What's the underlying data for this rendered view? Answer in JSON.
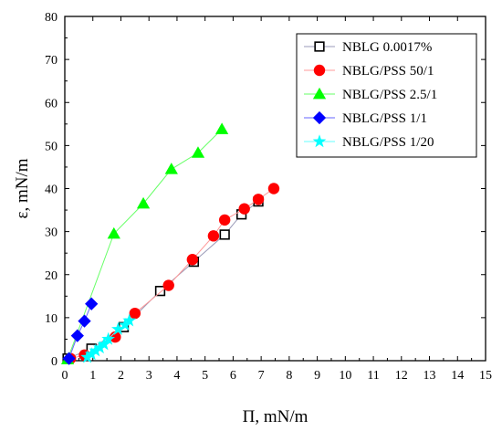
{
  "chart_data": {
    "type": "scatter",
    "title": "",
    "xlabel": "Π, mN/m",
    "ylabel": "ε, mN/m",
    "xlim": [
      0,
      15
    ],
    "ylim": [
      0,
      80
    ],
    "x_ticks": [
      0,
      1,
      2,
      3,
      4,
      5,
      6,
      7,
      8,
      9,
      10,
      11,
      12,
      13,
      14,
      15
    ],
    "y_ticks": [
      0,
      10,
      20,
      30,
      40,
      50,
      60,
      70,
      80
    ],
    "x_tick_labels": [
      "0",
      "1",
      "2",
      "3",
      "4",
      "5",
      "6",
      "7",
      "8",
      "9",
      "10",
      "11",
      "12",
      "13",
      "14",
      "15"
    ],
    "y_tick_labels": [
      "0",
      "10",
      "20",
      "30",
      "40",
      "50",
      "60",
      "70",
      "80"
    ],
    "grid": false,
    "legend_position": "top-right",
    "series": [
      {
        "name": "NBLG 0.0017%",
        "marker": "square-open",
        "color": "#000000",
        "line_color": "#9a9ab8",
        "x": [
          0.1,
          0.95,
          2.1,
          3.4,
          4.6,
          5.7,
          6.3,
          6.9
        ],
        "y": [
          0.5,
          2.8,
          7.8,
          16.2,
          23.0,
          29.3,
          34.0,
          37.0
        ]
      },
      {
        "name": "NBLG/PSS 50/1",
        "marker": "circle",
        "color": "#ff0000",
        "line_color": "#ff9999",
        "x": [
          0.2,
          0.7,
          1.8,
          2.5,
          3.7,
          4.55,
          5.3,
          5.7,
          6.4,
          6.9,
          7.45
        ],
        "y": [
          0.5,
          1.3,
          5.5,
          11.0,
          17.5,
          23.5,
          29.0,
          32.7,
          35.3,
          37.5,
          40.0
        ]
      },
      {
        "name": "NBLG/PSS 2.5/1",
        "marker": "triangle",
        "color": "#00ff00",
        "line_color": "#66ff66",
        "x": [
          0.1,
          1.75,
          2.8,
          3.8,
          4.75,
          5.6
        ],
        "y": [
          0.3,
          29.5,
          36.5,
          44.5,
          48.3,
          53.8
        ]
      },
      {
        "name": "NBLG/PSS 1/1",
        "marker": "diamond",
        "color": "#0000ff",
        "line_color": "#6666ff",
        "x": [
          0.15,
          0.45,
          0.7,
          0.95
        ],
        "y": [
          0.5,
          5.8,
          9.2,
          13.2
        ]
      },
      {
        "name": "NBLG/PSS 1/20",
        "marker": "star",
        "color": "#00ffff",
        "line_color": "#66ffff",
        "x": [
          0.8,
          0.95,
          1.1,
          1.25,
          1.4,
          1.55,
          1.9,
          2.15,
          2.3
        ],
        "y": [
          0.8,
          1.5,
          2.3,
          3.0,
          3.8,
          5.0,
          7.3,
          8.3,
          9.3
        ]
      }
    ]
  }
}
